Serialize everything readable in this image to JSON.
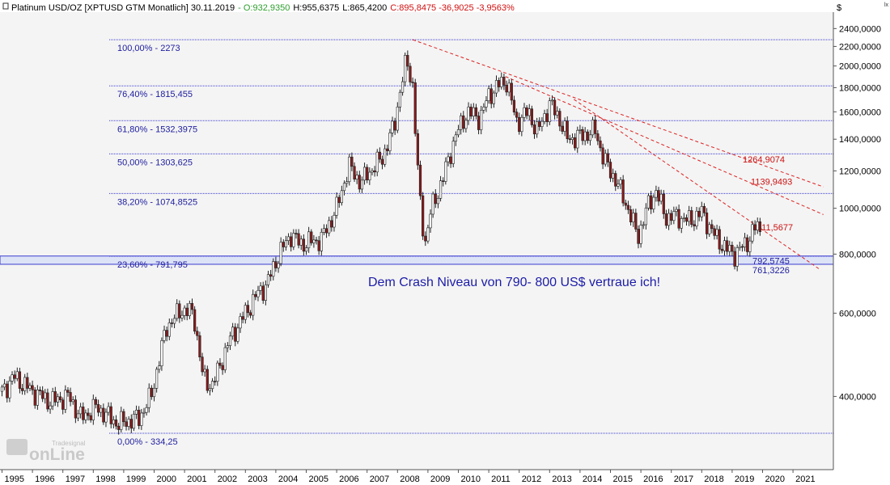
{
  "header": {
    "title": "Platinum USD/OZ [XPTUSD GTM  Monatlich] 30.11.2019",
    "open": "- O:932,9350",
    "high": "H:955,6375",
    "low": "L:865,4200",
    "close": "C:895,8475 -36,9025 -3,9563%",
    "currency": "$",
    "corner_mark": "lx"
  },
  "watermark": {
    "brand": "onLine",
    "sub": "Tradesignal"
  },
  "colors": {
    "background": "#f4f4f4",
    "fib_line": "#3b3bd0",
    "fib_label": "#2020a0",
    "trendline": "#dd2222",
    "candle_up": "#ffffff",
    "candle_down": "#8b1a1a",
    "band_fill": "#dde3f7",
    "header_open": "#2e9e2e",
    "header_close": "#d01010",
    "annotation": "#1c1ca8"
  },
  "chart_data": {
    "type": "candlestick",
    "title": "Platinum USD/OZ [XPTUSD GTM  Monatlich] 30.11.2019",
    "y_scale": "log",
    "ylim": [
      280,
      2600
    ],
    "xlim": [
      1995.0,
      2022.0
    ],
    "grid": false,
    "y_ticks": [
      {
        "value": 2400,
        "label": "2400,0000"
      },
      {
        "value": 2200,
        "label": "2200,0000"
      },
      {
        "value": 2000,
        "label": "2000,0000"
      },
      {
        "value": 1800,
        "label": "1800,0000"
      },
      {
        "value": 1600,
        "label": "1600,0000"
      },
      {
        "value": 1400,
        "label": "1400,0000"
      },
      {
        "value": 1200,
        "label": "1200,0000"
      },
      {
        "value": 1000,
        "label": "1000,0000"
      },
      {
        "value": 800,
        "label": "800,0000"
      },
      {
        "value": 600,
        "label": "600,0000"
      },
      {
        "value": 400,
        "label": "400,0000"
      }
    ],
    "x_ticks": [
      "1995",
      "1996",
      "1997",
      "1998",
      "1999",
      "2000",
      "2001",
      "2002",
      "2003",
      "2004",
      "2005",
      "2006",
      "2007",
      "2008",
      "2009",
      "2010",
      "2011",
      "2012",
      "2013",
      "2014",
      "2015",
      "2016",
      "2017",
      "2018",
      "2019",
      "2020",
      "2021"
    ],
    "fib_levels": [
      {
        "value": 2273,
        "label": "100,00% - 2273"
      },
      {
        "value": 1815.455,
        "label": "76,40% - 1815,455"
      },
      {
        "value": 1532.3975,
        "label": "61,80% - 1532,3975"
      },
      {
        "value": 1303.625,
        "label": "50,00% - 1303,625"
      },
      {
        "value": 1074.8525,
        "label": "38,20% - 1074,8525"
      },
      {
        "value": 791.795,
        "label": "23,60% - 791,795"
      },
      {
        "value": 334.25,
        "label": "0,00% - 334,25"
      }
    ],
    "support_band": {
      "upper": 792.5745,
      "lower": 761.3226,
      "upper_label": "792,5745",
      "lower_label": "761,3226"
    },
    "trendlines": [
      {
        "from": [
          2008.5,
          2273
        ],
        "to": [
          2022.0,
          1110
        ],
        "label": "1264,9074"
      },
      {
        "from": [
          2011.55,
          1900
        ],
        "to": [
          2022.0,
          970
        ],
        "label": "1139,9493"
      },
      {
        "from": [
          2013.8,
          1700
        ],
        "to": [
          2021.85,
          745
        ],
        "label": "911,5677"
      }
    ],
    "annotation": "Dem Crash Niveau von 790- 800 US$ vertraue ich!",
    "series": [
      {
        "anchors": [
          [
            1995.0,
            410
          ],
          [
            1995.4,
            440
          ],
          [
            1996.0,
            410
          ],
          [
            1996.6,
            390
          ],
          [
            1997.2,
            400
          ],
          [
            1997.6,
            360
          ],
          [
            1998.1,
            380
          ],
          [
            1998.8,
            350
          ],
          [
            1999.5,
            360
          ],
          [
            1999.9,
            400
          ],
          [
            2000.4,
            560
          ],
          [
            2000.9,
            610
          ],
          [
            2001.3,
            600
          ],
          [
            2001.6,
            440
          ],
          [
            2001.9,
            420
          ],
          [
            2002.5,
            530
          ],
          [
            2003.0,
            600
          ],
          [
            2003.4,
            660
          ],
          [
            2003.7,
            690
          ],
          [
            2004.1,
            800
          ],
          [
            2004.5,
            880
          ],
          [
            2004.8,
            840
          ],
          [
            2005.5,
            860
          ],
          [
            2006.0,
            1000
          ],
          [
            2006.4,
            1230
          ],
          [
            2006.8,
            1130
          ],
          [
            2007.0,
            1180
          ],
          [
            2007.5,
            1280
          ],
          [
            2007.9,
            1500
          ],
          [
            2008.1,
            1800
          ],
          [
            2008.3,
            2060
          ],
          [
            2008.5,
            1820
          ],
          [
            2008.7,
            1100
          ],
          [
            2008.9,
            840
          ],
          [
            2009.1,
            990
          ],
          [
            2009.5,
            1160
          ],
          [
            2009.9,
            1420
          ],
          [
            2010.3,
            1600
          ],
          [
            2010.7,
            1550
          ],
          [
            2011.0,
            1730
          ],
          [
            2011.3,
            1820
          ],
          [
            2011.6,
            1860
          ],
          [
            2011.9,
            1520
          ],
          [
            2012.3,
            1600
          ],
          [
            2012.6,
            1450
          ],
          [
            2013.0,
            1660
          ],
          [
            2013.3,
            1560
          ],
          [
            2013.6,
            1400
          ],
          [
            2014.0,
            1420
          ],
          [
            2014.5,
            1460
          ],
          [
            2014.8,
            1260
          ],
          [
            2015.2,
            1140
          ],
          [
            2015.6,
            990
          ],
          [
            2015.9,
            870
          ],
          [
            2016.2,
            1000
          ],
          [
            2016.5,
            1090
          ],
          [
            2016.8,
            960
          ],
          [
            2017.2,
            960
          ],
          [
            2017.6,
            940
          ],
          [
            2018.0,
            980
          ],
          [
            2018.4,
            880
          ],
          [
            2018.8,
            820
          ],
          [
            2019.1,
            800
          ],
          [
            2019.5,
            850
          ],
          [
            2019.8,
            920
          ],
          [
            2019.92,
            900
          ]
        ]
      }
    ]
  }
}
